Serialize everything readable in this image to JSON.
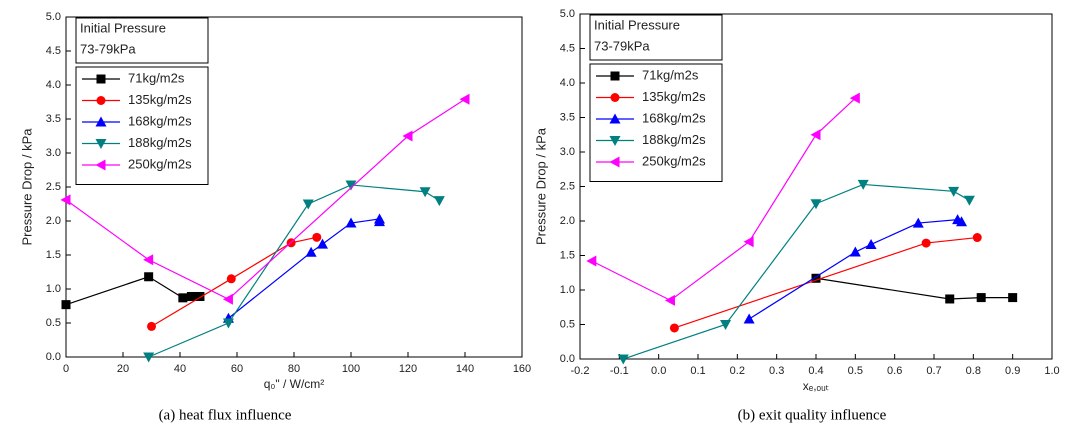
{
  "chart_data": [
    {
      "type": "line",
      "caption": "(a) heat flux influence",
      "x_label": "q₀\" / W/cm²",
      "y_label": "Pressure Drop / kPa",
      "annotation": [
        "Initial Pressure",
        "73-79kPa"
      ],
      "xlim": [
        0,
        160
      ],
      "xticks": [
        0,
        20,
        40,
        60,
        80,
        100,
        120,
        140,
        160
      ],
      "ylim": [
        0,
        5
      ],
      "yticks": [
        {
          "value": 0,
          "label": "0.0"
        },
        0.5,
        {
          "value": 1,
          "label": "1.0"
        },
        1.5,
        {
          "value": 2,
          "label": "2.0"
        },
        2.5,
        {
          "value": 3,
          "label": "3.0"
        },
        3.5,
        {
          "value": 4,
          "label": "4.0"
        },
        4.5,
        {
          "value": 5,
          "label": "5.0"
        }
      ],
      "series": [
        {
          "name": "71kg/m2s",
          "color": "#000000",
          "marker": "square",
          "x": [
            0,
            29,
            41,
            44,
            47
          ],
          "values": [
            0.77,
            1.18,
            0.87,
            0.89,
            0.89
          ]
        },
        {
          "name": "135kg/m2s",
          "color": "#ff0000",
          "marker": "circle",
          "x": [
            30,
            58,
            79,
            88
          ],
          "values": [
            0.45,
            1.15,
            1.68,
            1.76
          ]
        },
        {
          "name": "168kg/m2s",
          "color": "#0000ff",
          "marker": "triangle-up",
          "x": [
            57,
            86,
            90,
            100,
            110,
            110
          ],
          "values": [
            0.57,
            1.54,
            1.66,
            1.97,
            2.03,
            1.99
          ]
        },
        {
          "name": "188kg/m2s",
          "color": "#008080",
          "marker": "triangle-down",
          "x": [
            29,
            57,
            85,
            100,
            126,
            131
          ],
          "values": [
            0,
            0.5,
            2.25,
            2.53,
            2.43,
            2.3
          ]
        },
        {
          "name": "250kg/m2s",
          "color": "#ff00ff",
          "marker": "triangle-left",
          "x": [
            0,
            29,
            57,
            120,
            140
          ],
          "values": [
            2.31,
            1.43,
            0.85,
            3.25,
            3.79
          ]
        }
      ]
    },
    {
      "type": "line",
      "caption": "(b) exit quality influence",
      "x_label": "xₑ,ₒᵤₜ",
      "y_label": "Pressure Drop / kPa",
      "annotation": [
        "Initial Pressure",
        "73-79kPa"
      ],
      "xlim": [
        -0.2,
        1
      ],
      "xticks": [
        -0.2,
        -0.1,
        {
          "value": 0,
          "label": "0.0"
        },
        0.1,
        0.2,
        0.3,
        0.4,
        0.5,
        0.6,
        0.7,
        0.8,
        0.9,
        {
          "value": 1,
          "label": "1.0"
        }
      ],
      "ylim": [
        0,
        5
      ],
      "yticks": [
        {
          "value": 0,
          "label": "0.0"
        },
        0.5,
        {
          "value": 1,
          "label": "1.0"
        },
        1.5,
        {
          "value": 2,
          "label": "2.0"
        },
        2.5,
        {
          "value": 3,
          "label": "3.0"
        },
        3.5,
        {
          "value": 4,
          "label": "4.0"
        },
        4.5,
        {
          "value": 5,
          "label": "5.0"
        }
      ],
      "series": [
        {
          "name": "71kg/m2s",
          "color": "#000000",
          "marker": "square",
          "x": [
            0.4,
            0.74,
            0.82,
            0.9
          ],
          "values": [
            1.17,
            0.87,
            0.89,
            0.89
          ]
        },
        {
          "name": "135kg/m2s",
          "color": "#ff0000",
          "marker": "circle",
          "x": [
            0.04,
            0.68,
            0.81
          ],
          "values": [
            0.45,
            1.68,
            1.76
          ]
        },
        {
          "name": "168kg/m2s",
          "color": "#0000ff",
          "marker": "triangle-up",
          "x": [
            0.23,
            0.5,
            0.54,
            0.66,
            0.76,
            0.77
          ],
          "values": [
            0.58,
            1.55,
            1.66,
            1.97,
            2.02,
            1.99
          ]
        },
        {
          "name": "188kg/m2s",
          "color": "#008080",
          "marker": "triangle-down",
          "x": [
            -0.09,
            0.17,
            0.4,
            0.52,
            0.75,
            0.79
          ],
          "values": [
            0,
            0.5,
            2.25,
            2.53,
            2.43,
            2.3
          ]
        },
        {
          "name": "250kg/m2s",
          "color": "#ff00ff",
          "marker": "triangle-left",
          "x": [
            -0.17,
            0.03,
            0.23,
            0.4,
            0.5
          ],
          "values": [
            1.42,
            0.85,
            1.7,
            3.25,
            3.78
          ]
        }
      ]
    }
  ]
}
